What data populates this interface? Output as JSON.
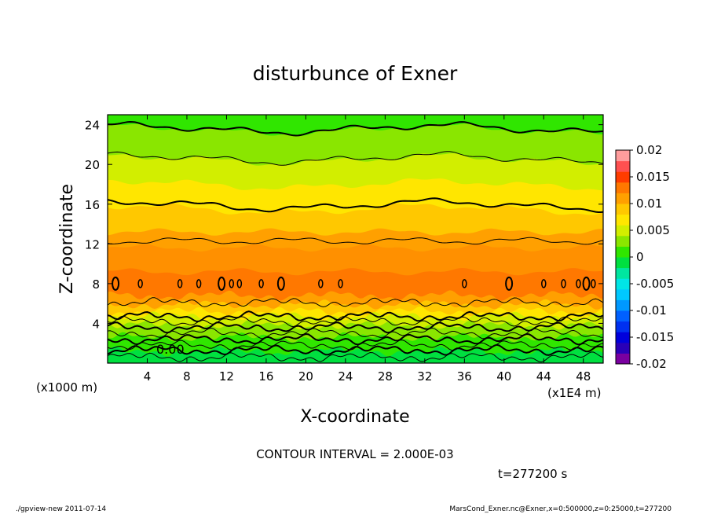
{
  "chart_data": {
    "type": "heatmap",
    "title": "disturbunce of Exner",
    "xlabel": "X-coordinate",
    "ylabel": "Z-coordinate",
    "x_unit_left": "(x1000 m)",
    "x_unit_right": "(x1E4 m)",
    "xlim": [
      0,
      50
    ],
    "ylim": [
      0,
      25
    ],
    "x_ticks": [
      "4",
      "8",
      "12",
      "16",
      "20",
      "24",
      "28",
      "32",
      "36",
      "40",
      "44",
      "48"
    ],
    "y_ticks": [
      "4",
      "8",
      "12",
      "16",
      "20",
      "24"
    ],
    "contour_label": "0.00",
    "colorbar": {
      "ticks": [
        "0.02",
        "0.015",
        "0.01",
        "0.005",
        "0",
        "-0.005",
        "-0.01",
        "-0.015",
        "-0.02"
      ],
      "range": [
        -0.02,
        0.02
      ],
      "levels": [
        {
          "from": -0.02,
          "to": -0.018,
          "color": "#7a00a0"
        },
        {
          "from": -0.018,
          "to": -0.016,
          "color": "#2a00b8"
        },
        {
          "from": -0.016,
          "to": -0.014,
          "color": "#0000dc"
        },
        {
          "from": -0.014,
          "to": -0.012,
          "color": "#0030f0"
        },
        {
          "from": -0.012,
          "to": -0.01,
          "color": "#0060ff"
        },
        {
          "from": -0.01,
          "to": -0.008,
          "color": "#0098ff"
        },
        {
          "from": -0.008,
          "to": -0.006,
          "color": "#00c8ff"
        },
        {
          "from": -0.006,
          "to": -0.004,
          "color": "#00e6e6"
        },
        {
          "from": -0.004,
          "to": -0.002,
          "color": "#00e6a0"
        },
        {
          "from": -0.002,
          "to": 0.0,
          "color": "#00e040"
        },
        {
          "from": 0.0,
          "to": 0.002,
          "color": "#30e600"
        },
        {
          "from": 0.002,
          "to": 0.004,
          "color": "#8ae600"
        },
        {
          "from": 0.004,
          "to": 0.006,
          "color": "#d2ee00"
        },
        {
          "from": 0.006,
          "to": 0.008,
          "color": "#ffe600"
        },
        {
          "from": 0.008,
          "to": 0.01,
          "color": "#ffc800"
        },
        {
          "from": 0.01,
          "to": 0.012,
          "color": "#ffa000"
        },
        {
          "from": 0.012,
          "to": 0.014,
          "color": "#ff7800"
        },
        {
          "from": 0.014,
          "to": 0.016,
          "color": "#ff3c00"
        },
        {
          "from": 0.016,
          "to": 0.018,
          "color": "#ff5050"
        },
        {
          "from": 0.018,
          "to": 0.02,
          "color": "#ff9c9c"
        }
      ]
    },
    "field_bands": [
      {
        "z_top": 25.0,
        "color": "#30e600"
      },
      {
        "z_top": 23.5,
        "color": "#8ae600"
      },
      {
        "z_top": 20.5,
        "color": "#d2ee00"
      },
      {
        "z_top": 18.0,
        "color": "#ffe600"
      },
      {
        "z_top": 15.5,
        "color": "#ffc800"
      },
      {
        "z_top": 13.2,
        "color": "#ffa000"
      },
      {
        "z_top": 11.6,
        "color": "#ff9000"
      },
      {
        "z_top": 9.2,
        "color": "#ff7800"
      },
      {
        "z_top": 6.8,
        "color": "#ffa000"
      },
      {
        "z_top": 5.9,
        "color": "#ffc800"
      },
      {
        "z_top": 5.2,
        "color": "#ffe600"
      },
      {
        "z_top": 4.7,
        "color": "#d2ee00"
      },
      {
        "z_top": 3.8,
        "color": "#8ae600"
      },
      {
        "z_top": 2.6,
        "color": "#30e600"
      },
      {
        "z_top": 1.2,
        "color": "#00e040"
      }
    ],
    "contour_lines": [
      {
        "z": 23.6,
        "bold": true
      },
      {
        "z": 20.6,
        "bold": false
      },
      {
        "z": 15.9,
        "bold": true
      },
      {
        "z": 12.3,
        "bold": false
      },
      {
        "z": 6.1,
        "bold": false
      },
      {
        "z": 4.7,
        "bold": true
      },
      {
        "z": 4.2,
        "bold": false
      },
      {
        "z": 3.6,
        "bold": true
      },
      {
        "z": 3.0,
        "bold": false
      },
      {
        "z": 2.4,
        "bold": true
      },
      {
        "z": 1.8,
        "bold": false
      },
      {
        "z": 1.3,
        "bold": true
      },
      {
        "z": 0.6,
        "bold": false
      }
    ],
    "contour_loops_z": 8,
    "contour_loops_x": [
      0.8,
      3.3,
      7.3,
      9.2,
      11.5,
      12.5,
      13.3,
      15.5,
      17.5,
      21.5,
      23.5,
      36.0,
      40.5,
      44.0,
      46.0,
      47.5,
      48.3,
      49.0
    ]
  },
  "annotations": {
    "contour_interval": "CONTOUR INTERVAL = 2.000E-03",
    "time": "t=277200 s",
    "footer_left": "./gpview-new   2011-07-14",
    "footer_right": "MarsCond_Exner.nc@Exner,x=0:500000,z=0:25000,t=277200"
  }
}
